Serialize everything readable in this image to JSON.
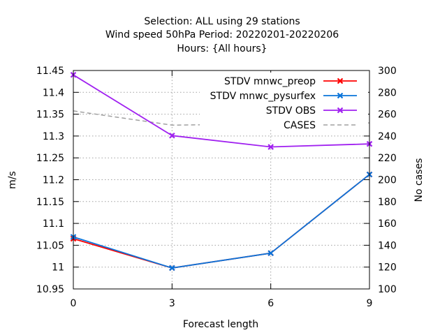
{
  "chart_data": {
    "type": "line",
    "title_lines": [
      "Selection: ALL using    29 stations",
      "Wind speed 50hPa   Period: 20220201-20220206",
      "Hours: {All hours}"
    ],
    "xlabel": "Forecast length",
    "ylabel": "m/s",
    "y2label": "No cases",
    "x": [
      0,
      3,
      6,
      9
    ],
    "xlim": [
      0,
      9
    ],
    "ylim": [
      10.95,
      11.45
    ],
    "y2lim": [
      100,
      300
    ],
    "xticks": [
      "0",
      "3",
      "6",
      "9"
    ],
    "yticks": [
      "10.95",
      "11",
      "11.05",
      "11.1",
      "11.15",
      "11.2",
      "11.25",
      "11.3",
      "11.35",
      "11.4",
      "11.45"
    ],
    "y2ticks": [
      "100",
      "120",
      "140",
      "160",
      "180",
      "200",
      "220",
      "240",
      "260",
      "280",
      "300"
    ],
    "grid": true,
    "legend_position": "top-right",
    "series": [
      {
        "name": "STDV mnwc_preop",
        "axis": "y1",
        "color": "#ff0000",
        "style": "solid",
        "marker": "x",
        "values": [
          11.065,
          10.998,
          11.032,
          11.212
        ]
      },
      {
        "name": "STDV mnwc_pysurfex",
        "axis": "y1",
        "color": "#0a74da",
        "style": "solid",
        "marker": "x",
        "values": [
          11.069,
          10.998,
          11.032,
          11.212
        ]
      },
      {
        "name": "STDV OBS",
        "axis": "y1",
        "color": "#a020f0",
        "style": "solid",
        "marker": "x",
        "values": [
          11.44,
          11.301,
          11.275,
          11.282
        ]
      },
      {
        "name": "CASES",
        "axis": "y2",
        "color": "#a0a0a0",
        "style": "dashed",
        "marker": "none",
        "values": [
          263,
          250,
          251,
          252
        ]
      }
    ]
  }
}
